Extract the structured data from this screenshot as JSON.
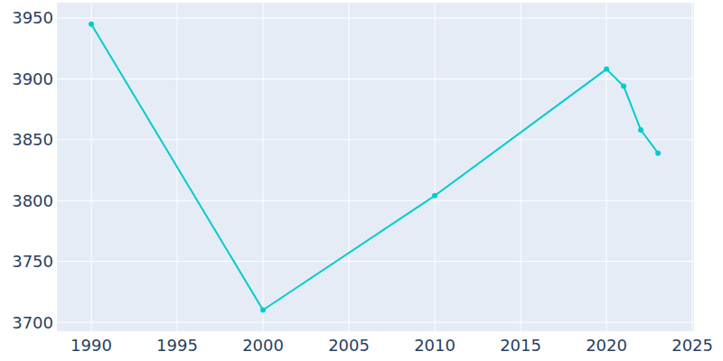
{
  "chart_data": {
    "type": "line",
    "x": [
      1990,
      2000,
      2010,
      2020,
      2021,
      2022,
      2023
    ],
    "values": [
      3945,
      3710,
      3804,
      3908,
      3894,
      3858,
      3839
    ],
    "color": "#00cccc",
    "marker": "circle",
    "xlim": [
      1988,
      2025.1
    ],
    "xticks": [
      1990,
      1995,
      2000,
      2005,
      2010,
      2015,
      2020,
      2025
    ],
    "ylim": [
      3692.6,
      3962.6
    ],
    "yticks": [
      3700,
      3750,
      3800,
      3850,
      3900,
      3950
    ],
    "grid": true
  }
}
